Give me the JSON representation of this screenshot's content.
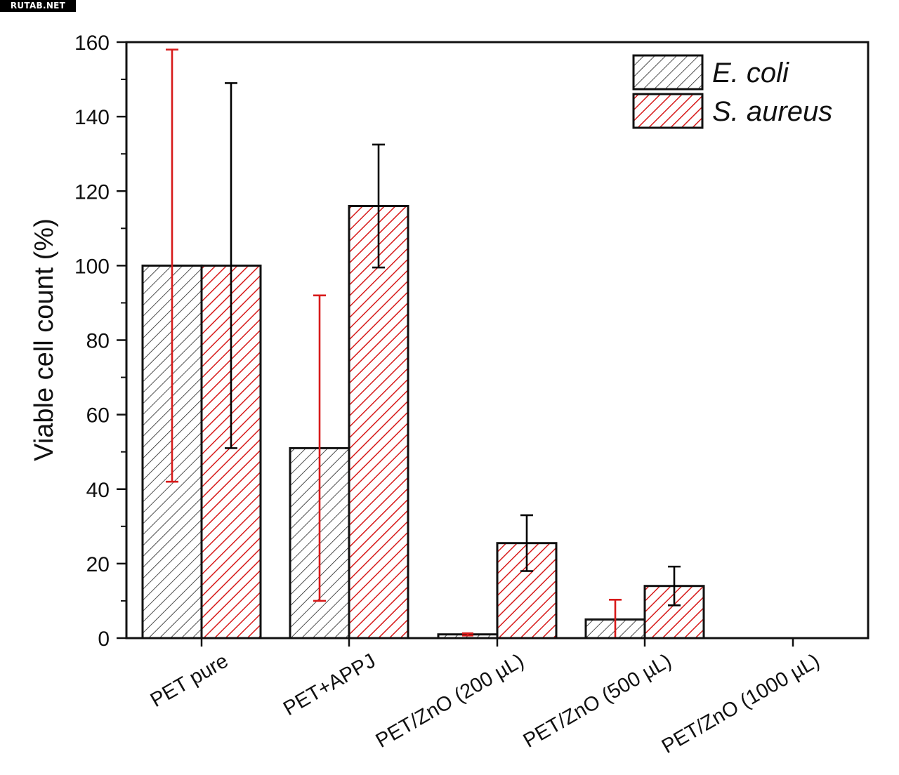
{
  "watermark": "RUTAB.NET",
  "chart_data": {
    "type": "bar",
    "title": "",
    "xlabel": "",
    "ylabel": "Viable cell count (%)",
    "ylim": [
      0,
      160
    ],
    "yticks": [
      0,
      20,
      40,
      60,
      80,
      100,
      120,
      140,
      160
    ],
    "categories": [
      "PET pure",
      "PET+APPJ",
      "PET/ZnO (200 µL)",
      "PET/ZnO (500 µL)",
      "PET/ZnO (1000 µL)"
    ],
    "series": [
      {
        "name": "E. coli",
        "color": "#000000",
        "values": [
          100,
          51,
          1,
          5,
          0
        ],
        "error": [
          58,
          41,
          0.3,
          5.3,
          0
        ],
        "error_color": "#d71a1a"
      },
      {
        "name": "S. aureus",
        "color": "#d71a1a",
        "values": [
          100,
          116,
          25.5,
          14,
          0
        ],
        "error": [
          49,
          16.5,
          7.5,
          5.2,
          0
        ],
        "error_color": "#000000"
      }
    ],
    "legend_position": "top-right",
    "grid": false,
    "bar_pattern": "diagonal-hatch"
  }
}
